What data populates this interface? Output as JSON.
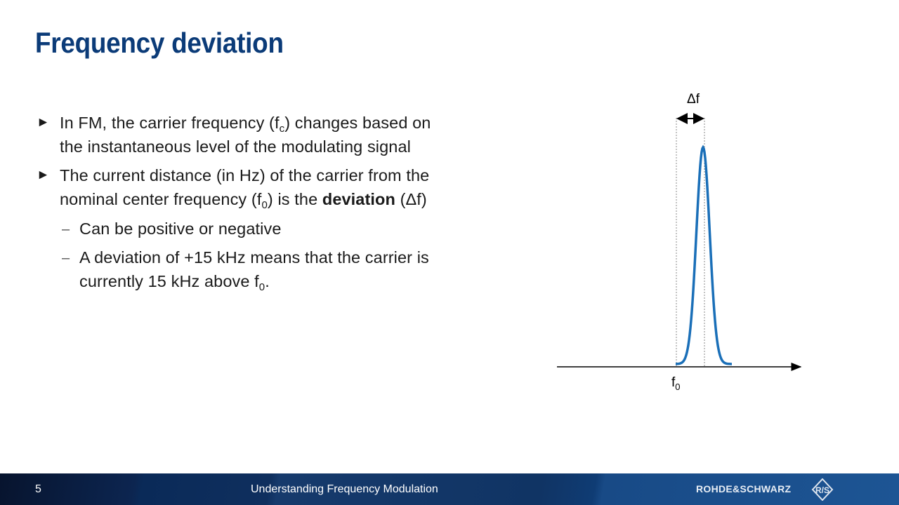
{
  "slide": {
    "title": "Frequency deviation",
    "bullets": [
      {
        "parts": [
          "In FM, the carrier frequency (f",
          "c",
          ") changes based on",
          "the instantaneous level of the modulating signal"
        ]
      },
      {
        "parts": [
          "The current distance (in Hz) of the carrier from the",
          "nominal center frequency (f",
          "0",
          ") is the ",
          "deviation",
          " (Δf)"
        ]
      }
    ],
    "sub_bullets": [
      {
        "parts": [
          "Can be positive or negative"
        ]
      },
      {
        "parts": [
          "A deviation of +15 kHz means that the carrier is",
          "currently 15 kHz above f",
          "0",
          "."
        ]
      }
    ],
    "bullet_marker": "►",
    "sub_marker": "–"
  },
  "diagram": {
    "delta_label": "Δf",
    "axis_label": "f",
    "axis_label_sub": "0",
    "curve_color": "#1a6fb8"
  },
  "footer": {
    "page_number": "5",
    "title": "Understanding Frequency Modulation",
    "brand": "ROHDE&SCHWARZ",
    "logo_letters": "RS"
  }
}
